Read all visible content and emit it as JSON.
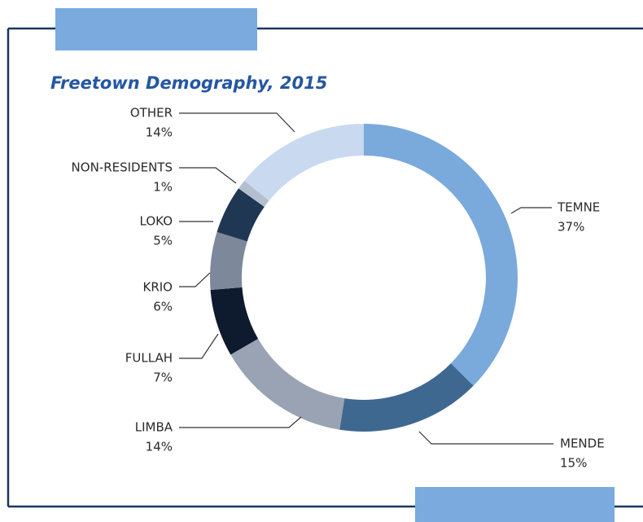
{
  "chart_data": {
    "type": "donut",
    "title": "Freetown Demography, 2015",
    "categories": [
      "TEMNE",
      "MENDE",
      "LIMBA",
      "FULLAH",
      "KRIO",
      "LOKO",
      "NON-RESIDENTS",
      "OTHER"
    ],
    "values": [
      37,
      15,
      14,
      7,
      6,
      5,
      1,
      14
    ],
    "value_labels": [
      "37%",
      "15%",
      "14%",
      "7%",
      "6%",
      "5%",
      "1%",
      "14%"
    ],
    "colors": [
      "#7aa9dc",
      "#3f6891",
      "#99a3b3",
      "#0e1a2d",
      "#7d899b",
      "#1f3752",
      "#b3bfcf",
      "#c9d9ef"
    ]
  }
}
